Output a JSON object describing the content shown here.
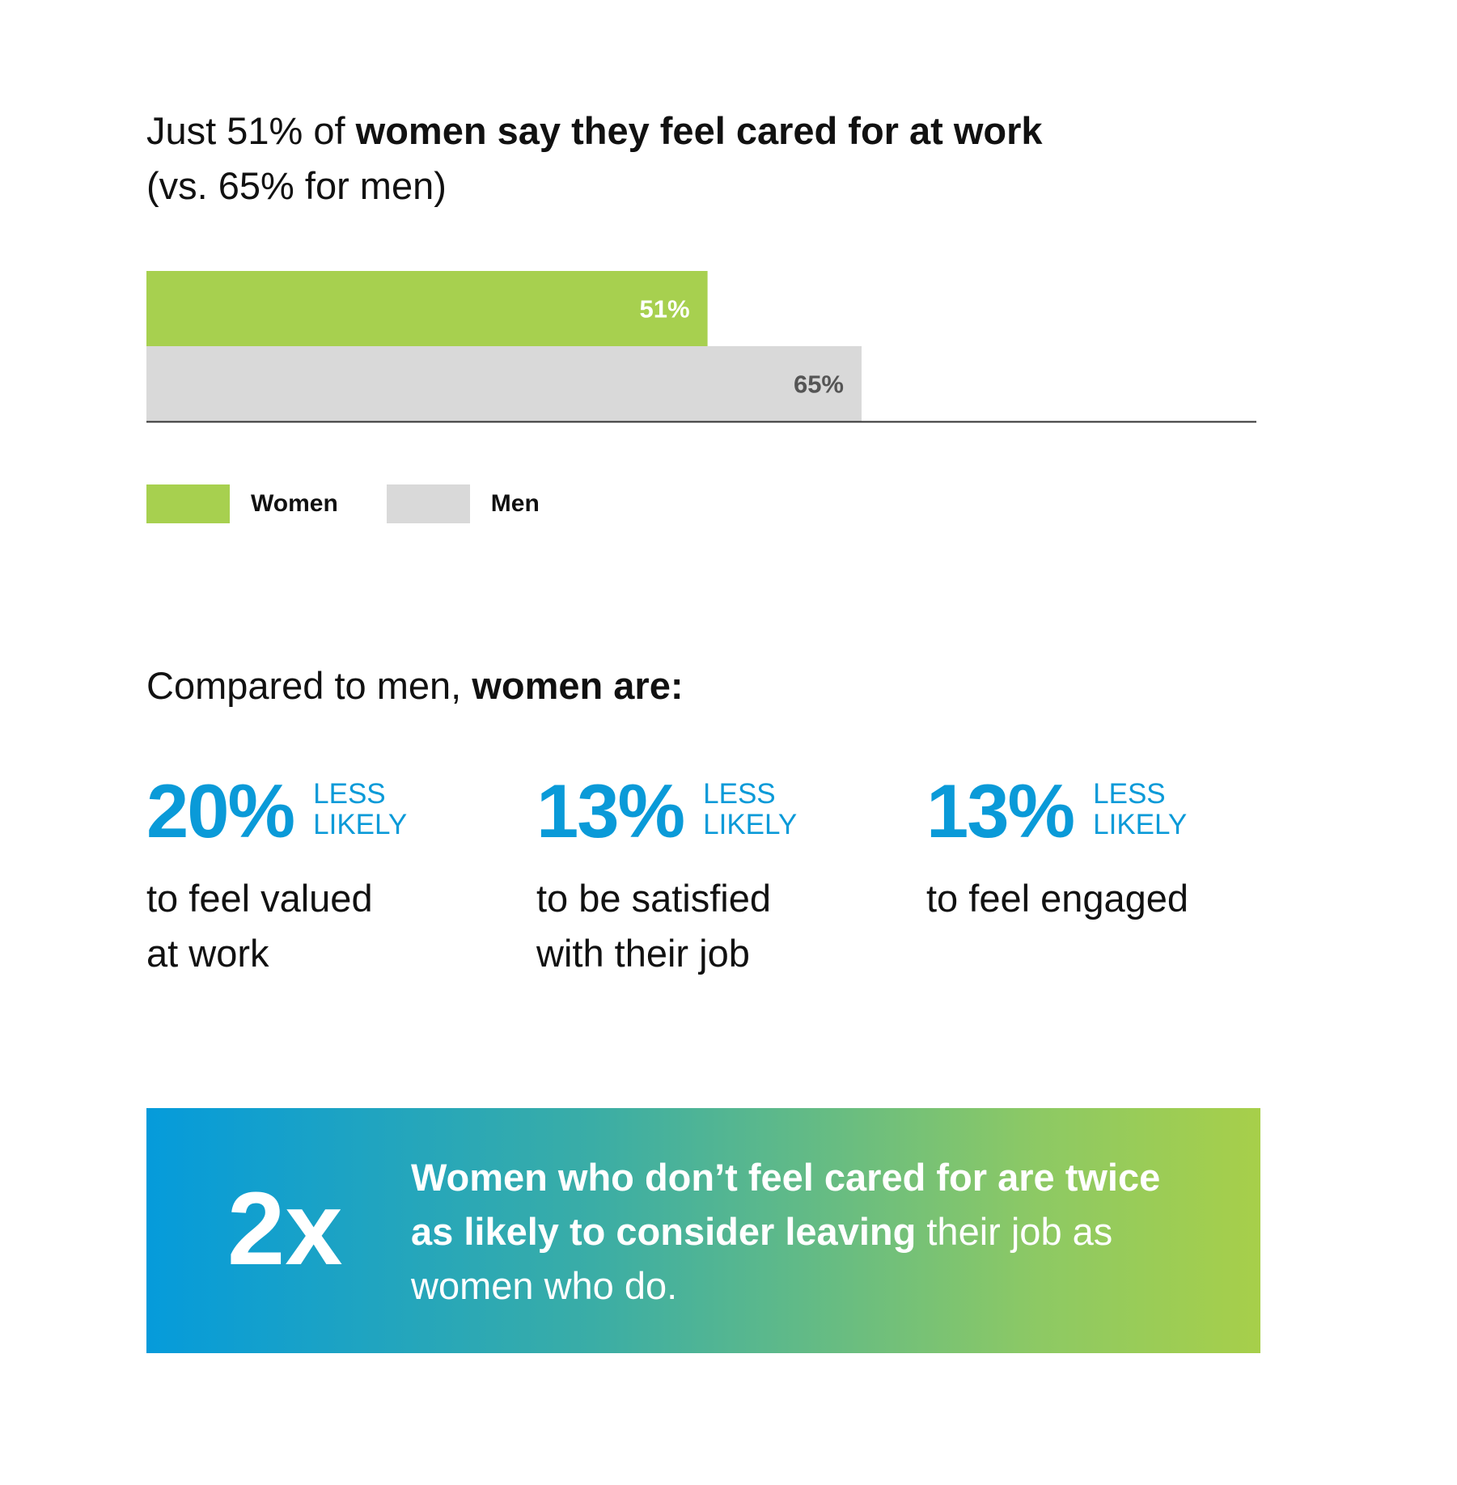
{
  "title": {
    "prefix": "Just 51% of ",
    "emphasis": "women say they feel cared for at work",
    "subline": "(vs. 65% for men)"
  },
  "chart_data": {
    "type": "bar",
    "orientation": "horizontal",
    "categories": [
      "Women",
      "Men"
    ],
    "values": [
      51,
      65
    ],
    "value_labels": [
      "51%",
      "65%"
    ],
    "xlim": [
      0,
      100
    ],
    "colors": [
      "#a7d04f",
      "#d9d9d9"
    ],
    "label_colors": [
      "#ffffff",
      "#555555"
    ],
    "legend_placement": "bottom-left",
    "grid": false
  },
  "legend": [
    {
      "label": "Women",
      "color": "#a7d04f"
    },
    {
      "label": "Men",
      "color": "#d9d9d9"
    }
  ],
  "compare": {
    "prefix": "Compared to men, ",
    "emphasis": "women are:"
  },
  "stats": [
    {
      "value": "20%",
      "qual1": "LESS",
      "qual2": "LIKELY",
      "desc1": "to feel valued",
      "desc2": "at work"
    },
    {
      "value": "13%",
      "qual1": "LESS",
      "qual2": "LIKELY",
      "desc1": "to be satisfied",
      "desc2": "with their job"
    },
    {
      "value": "13%",
      "qual1": "LESS",
      "qual2": "LIKELY",
      "desc1": "to feel engaged",
      "desc2": ""
    }
  ],
  "banner": {
    "stat": "2x",
    "bold": "Women who don’t feel cared for are twice as likely to consider leaving",
    "rest": " their job as women who do."
  }
}
